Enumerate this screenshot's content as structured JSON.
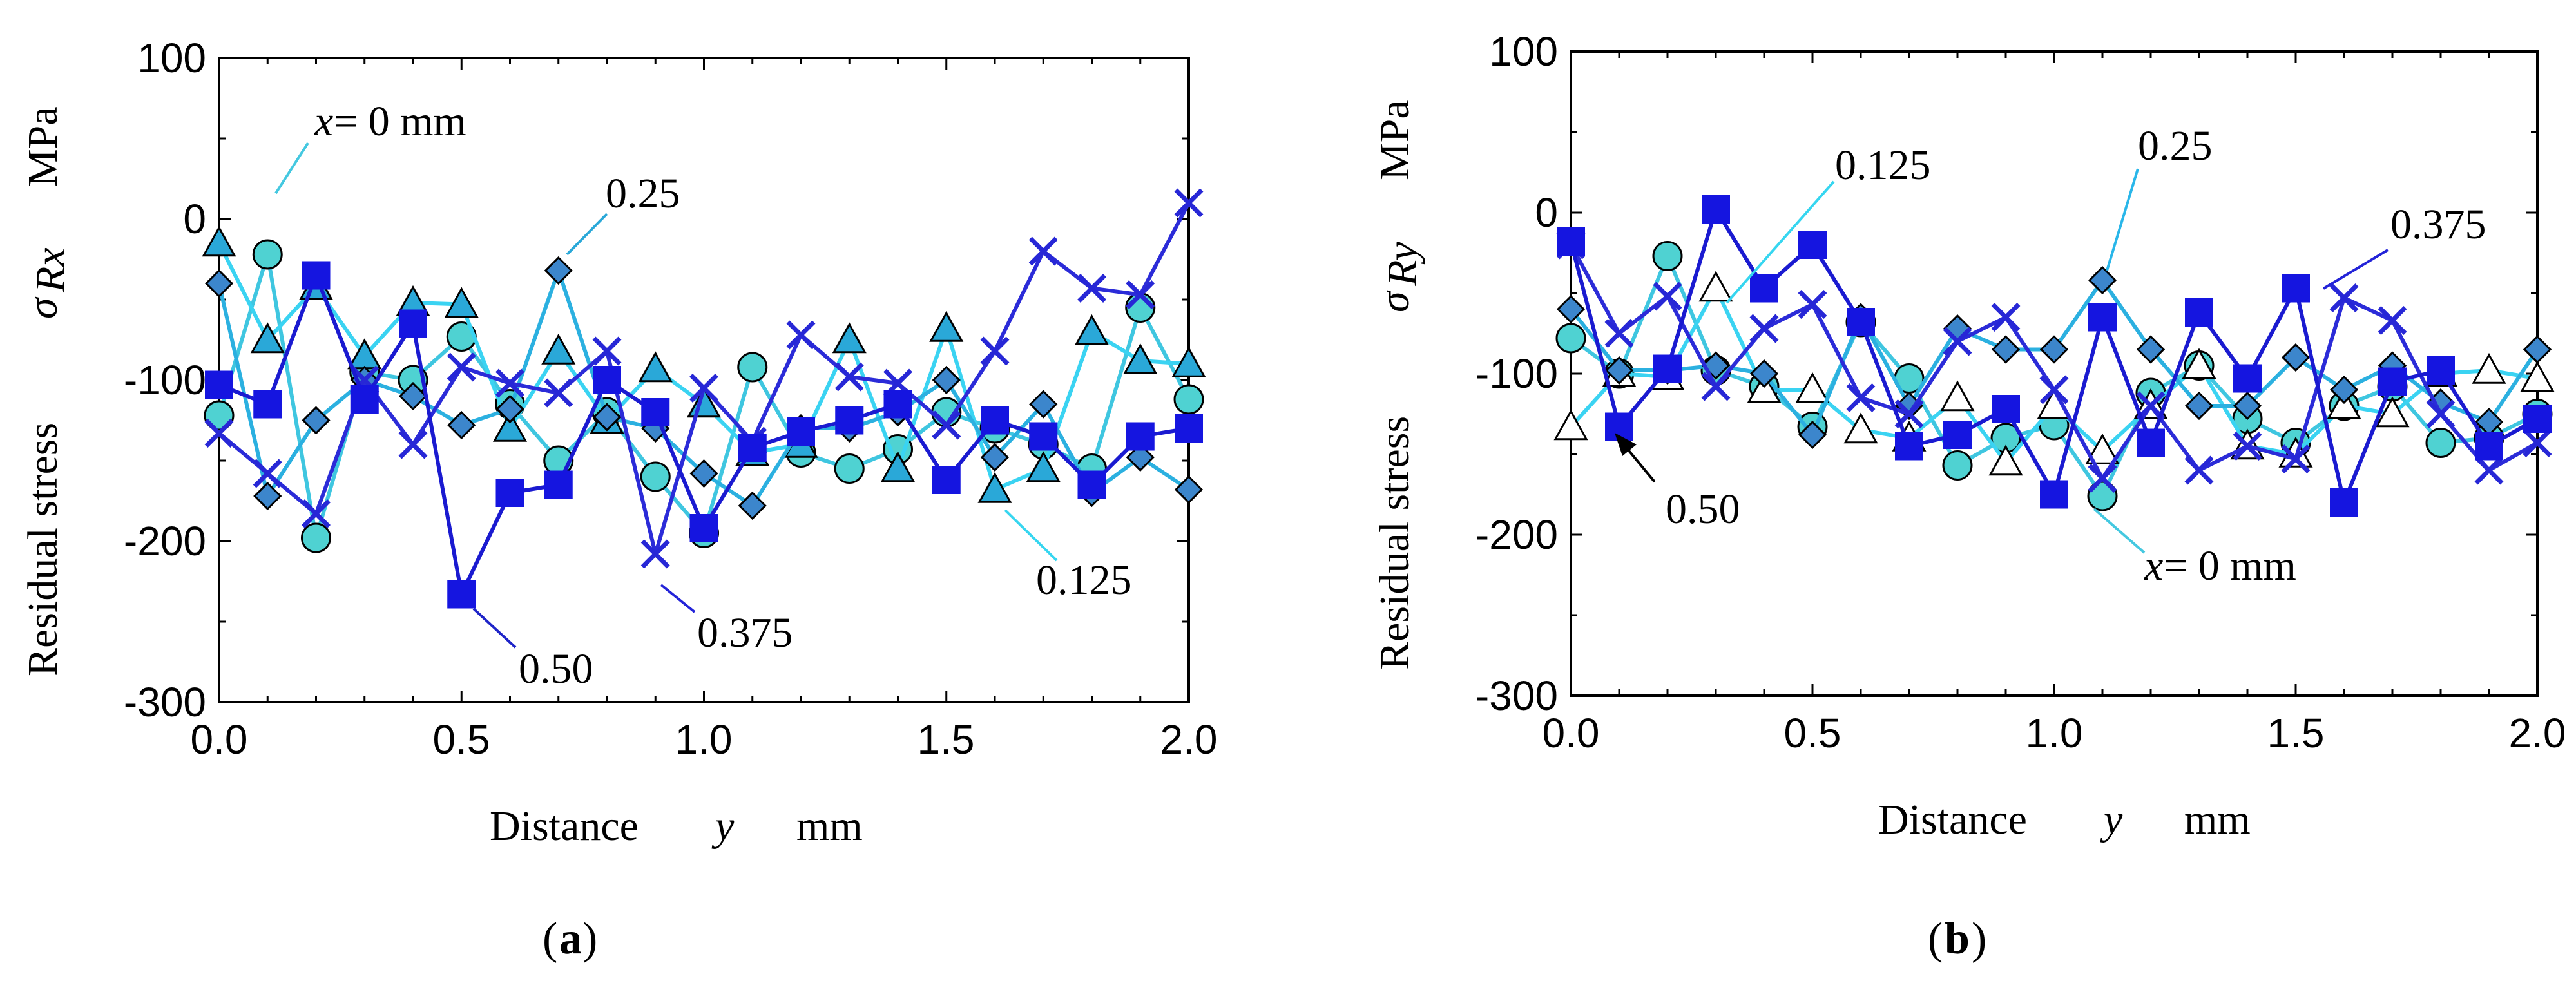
{
  "figure": {
    "captions": [
      "(",
      "a",
      ")",
      "(",
      "b",
      ")"
    ]
  },
  "chart_data": [
    {
      "type": "line",
      "panel": "a",
      "ylabel_parts": {
        "text": "Residual stress",
        "sym": "σ",
        "sub": "Rx",
        "unit": "MPa"
      },
      "xlabel_parts": {
        "text": "Distance",
        "var": "y",
        "unit": "mm"
      },
      "xlim": [
        0,
        2.0
      ],
      "ylim": [
        -300,
        100
      ],
      "xticks": [
        "0.0",
        "0.5",
        "1.0",
        "1.5",
        "2.0"
      ],
      "yticks": [
        "100",
        "0",
        "-100",
        "-200",
        "-300"
      ],
      "x": [
        0.0,
        0.1,
        0.2,
        0.3,
        0.4,
        0.5,
        0.6,
        0.7,
        0.8,
        0.9,
        1.0,
        1.1,
        1.2,
        1.3,
        1.4,
        1.5,
        1.6,
        1.7,
        1.8,
        1.9,
        2.0
      ],
      "series": [
        {
          "name": "x = 0 mm",
          "marker": "circle",
          "color": "#4fd2d2",
          "values": [
            -122,
            -22,
            -198,
            -95,
            -100,
            -73,
            -115,
            -150,
            -120,
            -160,
            -195,
            -92,
            -145,
            -155,
            -143,
            -120,
            -130,
            -140,
            -155,
            -55,
            -112
          ]
        },
        {
          "name": "0.125",
          "marker": "triangle",
          "color": "#2aa8d8",
          "values": [
            -15,
            -75,
            -42,
            -85,
            -52,
            -53,
            -130,
            -82,
            -125,
            -93,
            -115,
            -145,
            -140,
            -75,
            -155,
            -68,
            -168,
            -155,
            -70,
            -88,
            -90
          ]
        },
        {
          "name": "0.25",
          "marker": "diamond",
          "color": "#3c86cc",
          "values": [
            -40,
            -172,
            -125,
            -100,
            -110,
            -128,
            -118,
            -32,
            -123,
            -130,
            -158,
            -178,
            -130,
            -130,
            -120,
            -100,
            -148,
            -115,
            -170,
            -148,
            -168
          ]
        },
        {
          "name": "0.375",
          "marker": "x",
          "color": "#2727d6",
          "values": [
            -133,
            -158,
            -183,
            -100,
            -140,
            -92,
            -102,
            -108,
            -82,
            -208,
            -105,
            -138,
            -72,
            -98,
            -102,
            -128,
            -82,
            -20,
            -43,
            -47,
            10
          ]
        },
        {
          "name": "0.50",
          "marker": "square",
          "color": "#1515e0",
          "values": [
            -103,
            -115,
            -35,
            -112,
            -65,
            -233,
            -170,
            -165,
            -100,
            -120,
            -192,
            -142,
            -132,
            -125,
            -115,
            -162,
            -125,
            -135,
            -165,
            -135,
            -130
          ]
        }
      ],
      "annotations": [
        {
          "label_parts": {
            "var": "x",
            "rest": " = 0 mm"
          },
          "color": "#000000"
        },
        {
          "label": "0.25",
          "color": "#29b6e9"
        },
        {
          "label": "0.125",
          "color": "#36d6f0"
        },
        {
          "label": "0.375",
          "color": "#2323d8"
        },
        {
          "label": "0.50",
          "color": "#1e24c8"
        }
      ]
    },
    {
      "type": "line",
      "panel": "b",
      "ylabel_parts": {
        "text": "Residual stress",
        "sym": "σ",
        "sub": "Ry",
        "unit": "MPa"
      },
      "xlabel_parts": {
        "text": "Distance",
        "var": "y",
        "unit": "mm"
      },
      "xlim": [
        0,
        2.0
      ],
      "ylim": [
        -300,
        100
      ],
      "xticks": [
        "0.0",
        "0.5",
        "1.0",
        "1.5",
        "2.0"
      ],
      "yticks": [
        "100",
        "0",
        "-100",
        "-200",
        "-300"
      ],
      "x": [
        0.0,
        0.1,
        0.2,
        0.3,
        0.4,
        0.5,
        0.6,
        0.7,
        0.8,
        0.9,
        1.0,
        1.1,
        1.2,
        1.3,
        1.4,
        1.5,
        1.6,
        1.7,
        1.8,
        1.9,
        2.0
      ],
      "series": [
        {
          "name": "x = 0 mm",
          "marker": "circle",
          "color": "#4fd2d2",
          "values": [
            -78,
            -100,
            -27,
            -98,
            -108,
            -133,
            -68,
            -103,
            -157,
            -140,
            -132,
            -176,
            -112,
            -95,
            -128,
            -143,
            -120,
            -108,
            -143,
            -140,
            -125
          ]
        },
        {
          "name": "0.125",
          "marker": "triangle",
          "color": "#ffffff",
          "values": [
            -133,
            -100,
            -102,
            -47,
            -110,
            -110,
            -135,
            -140,
            -115,
            -155,
            -120,
            -148,
            -120,
            -95,
            -145,
            -150,
            -120,
            -125,
            -100,
            -98,
            -103
          ]
        },
        {
          "name": "0.25",
          "marker": "diamond",
          "color": "#3c86cc",
          "values": [
            -60,
            -98,
            -98,
            -95,
            -100,
            -138,
            -65,
            -120,
            -72,
            -85,
            -85,
            -42,
            -85,
            -120,
            -120,
            -90,
            -110,
            -95,
            -118,
            -130,
            -85
          ]
        },
        {
          "name": "0.375",
          "marker": "x",
          "color": "#2727d6",
          "values": [
            -20,
            -75,
            -52,
            -108,
            -72,
            -57,
            -115,
            -125,
            -80,
            -65,
            -110,
            -165,
            -120,
            -160,
            -145,
            -153,
            -53,
            -67,
            -125,
            -160,
            -143
          ]
        },
        {
          "name": "0.50",
          "marker": "square",
          "color": "#1515e0",
          "values": [
            -18,
            -133,
            -97,
            2,
            -47,
            -20,
            -68,
            -145,
            -138,
            -122,
            -175,
            -65,
            -143,
            -62,
            -103,
            -47,
            -180,
            -105,
            -98,
            -145,
            -128
          ]
        }
      ],
      "annotations": [
        {
          "label": "0.125",
          "color": "#36d6f0"
        },
        {
          "label": "0.25",
          "color": "#29b6e9"
        },
        {
          "label": "0.375",
          "color": "#2323d8"
        },
        {
          "label": "0.50",
          "color": "#000000"
        },
        {
          "label_parts": {
            "var": "x",
            "rest": " = 0 mm"
          },
          "color": "#000000"
        }
      ]
    }
  ]
}
